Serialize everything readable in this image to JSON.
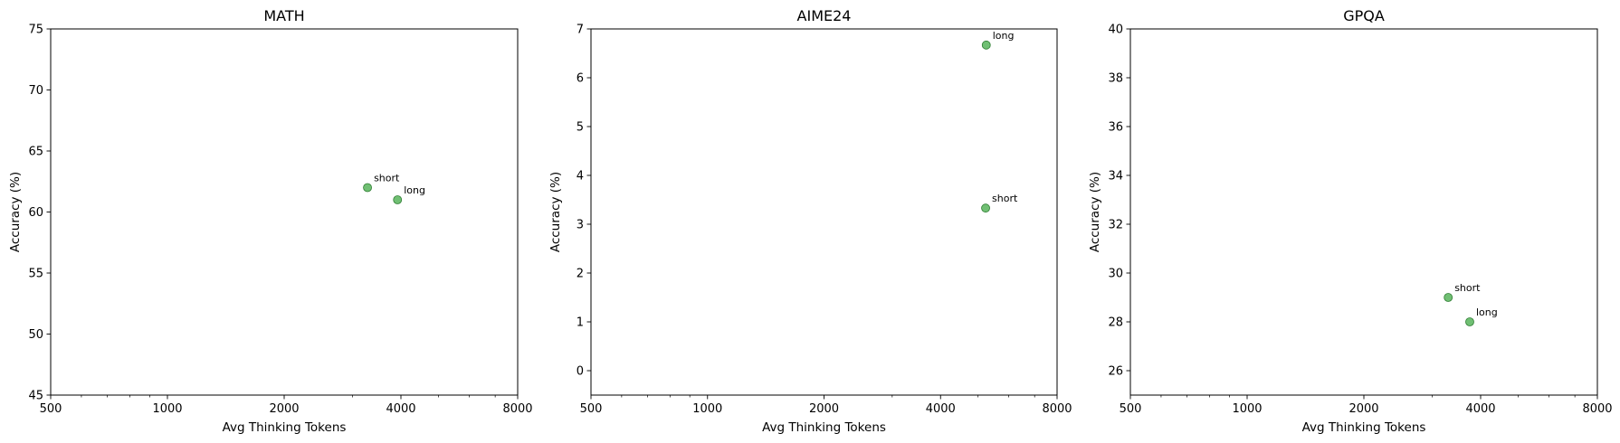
{
  "chart_data": [
    {
      "type": "scatter",
      "title": "MATH",
      "xlabel": "Avg Thinking Tokens",
      "ylabel": "Accuracy (%)",
      "xscale": "log",
      "xlim": [
        500,
        8000
      ],
      "ylim": [
        45,
        75
      ],
      "xticks": [
        500,
        1000,
        2000,
        4000,
        8000
      ],
      "yticks": [
        45,
        50,
        55,
        60,
        65,
        70,
        75
      ],
      "grid": false,
      "point_color": "#4caf50",
      "points": [
        {
          "label": "short",
          "x": 3280,
          "y": 62
        },
        {
          "label": "long",
          "x": 3920,
          "y": 61
        }
      ]
    },
    {
      "type": "scatter",
      "title": "AIME24",
      "xlabel": "Avg Thinking Tokens",
      "ylabel": "Accuracy (%)",
      "xscale": "log",
      "xlim": [
        500,
        8000
      ],
      "ylim": [
        -0.5,
        7
      ],
      "xticks": [
        500,
        1000,
        2000,
        4000,
        8000
      ],
      "yticks": [
        0,
        1,
        2,
        3,
        4,
        5,
        6,
        7
      ],
      "grid": false,
      "point_color": "#4caf50",
      "points": [
        {
          "label": "long",
          "x": 5250,
          "y": 6.67
        },
        {
          "label": "short",
          "x": 5230,
          "y": 3.33
        }
      ]
    },
    {
      "type": "scatter",
      "title": "GPQA",
      "xlabel": "Avg Thinking Tokens",
      "ylabel": "Accuracy (%)",
      "xscale": "log",
      "xlim": [
        500,
        8000
      ],
      "ylim": [
        25,
        40
      ],
      "xticks": [
        500,
        1000,
        2000,
        4000,
        8000
      ],
      "yticks": [
        26,
        28,
        30,
        32,
        34,
        36,
        38,
        40
      ],
      "grid": false,
      "point_color": "#4caf50",
      "points": [
        {
          "label": "short",
          "x": 3300,
          "y": 29
        },
        {
          "label": "long",
          "x": 3750,
          "y": 28
        }
      ]
    }
  ]
}
